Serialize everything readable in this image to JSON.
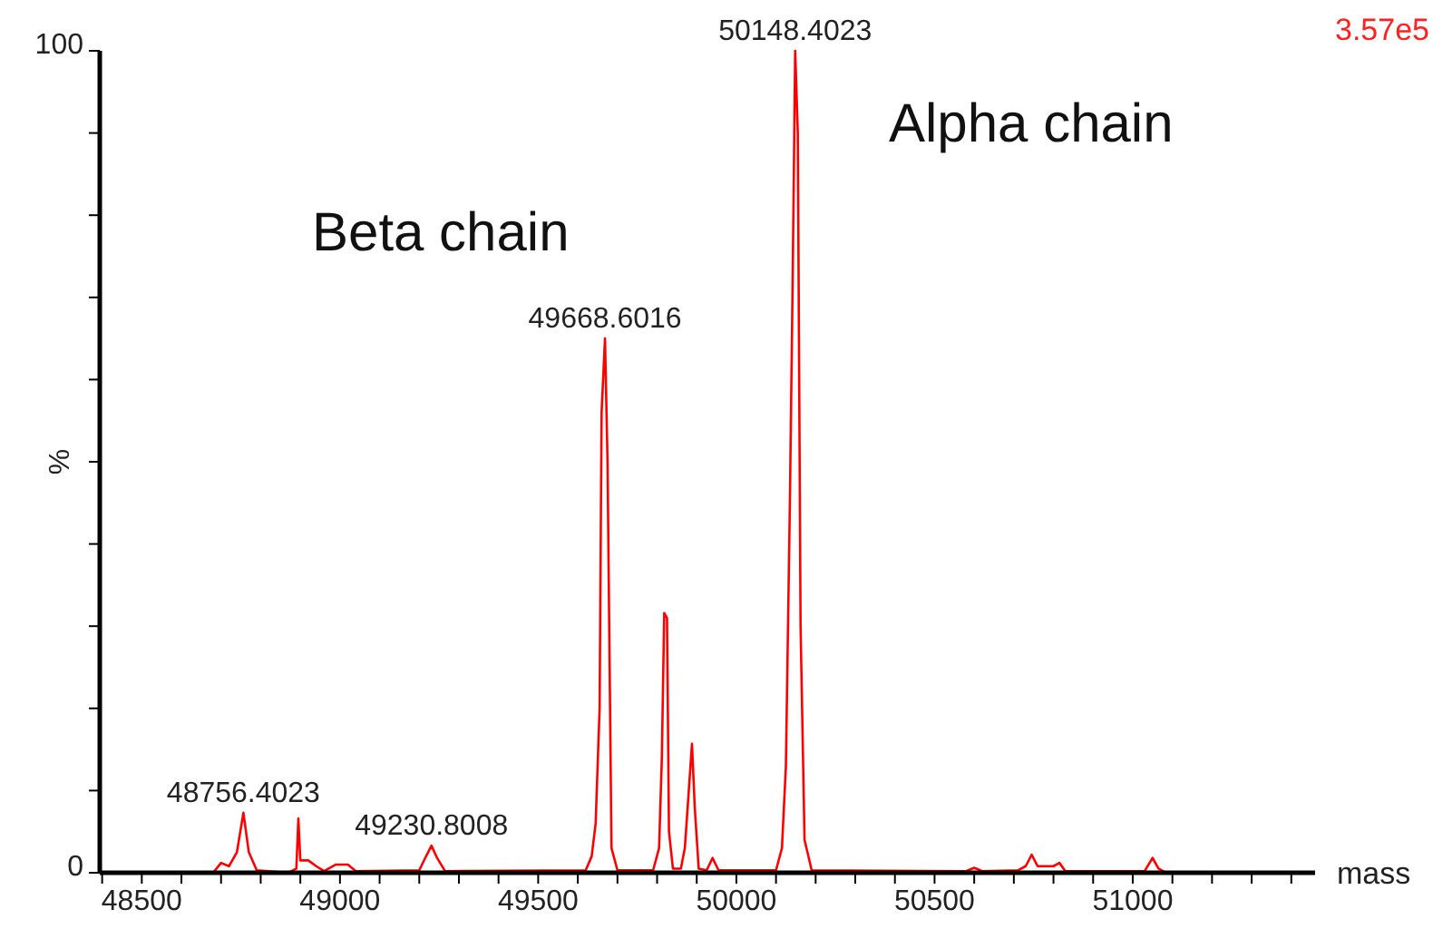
{
  "chart_data": {
    "type": "line",
    "xlabel": "mass",
    "ylabel": "%",
    "xlim": [
      48394,
      51460
    ],
    "ylim": [
      0,
      100
    ],
    "xticks": [
      {
        "value": 48400,
        "label": null
      },
      48500,
      {
        "value": 48600,
        "label": null
      },
      {
        "value": 48700,
        "label": null
      },
      {
        "value": 48800,
        "label": null
      },
      {
        "value": 48900,
        "label": null
      },
      49000,
      {
        "value": 49100,
        "label": null
      },
      {
        "value": 49200,
        "label": null
      },
      {
        "value": 49300,
        "label": null
      },
      {
        "value": 49400,
        "label": null
      },
      49500,
      {
        "value": 49600,
        "label": null
      },
      {
        "value": 49700,
        "label": null
      },
      {
        "value": 49800,
        "label": null
      },
      {
        "value": 49900,
        "label": null
      },
      50000,
      {
        "value": 50100,
        "label": null
      },
      {
        "value": 50200,
        "label": null
      },
      {
        "value": 50300,
        "label": null
      },
      {
        "value": 50400,
        "label": null
      },
      50500,
      {
        "value": 50600,
        "label": null
      },
      {
        "value": 50700,
        "label": null
      },
      {
        "value": 50800,
        "label": null
      },
      {
        "value": 50900,
        "label": null
      },
      51000,
      {
        "value": 51100,
        "label": null
      },
      {
        "value": 51200,
        "label": null
      },
      {
        "value": 51300,
        "label": null
      },
      {
        "value": 51400,
        "label": null
      }
    ],
    "yticks": [
      0,
      {
        "value": 10,
        "label": null
      },
      {
        "value": 20,
        "label": null
      },
      {
        "value": 30,
        "label": null
      },
      {
        "value": 40,
        "label": null
      },
      {
        "value": 50,
        "label": null
      },
      {
        "value": 60,
        "label": null
      },
      {
        "value": 70,
        "label": null
      },
      {
        "value": 80,
        "label": null
      },
      {
        "value": 90,
        "label": null
      },
      100
    ],
    "marker": "none",
    "line_style": "solid",
    "grid": false,
    "series": [
      {
        "color": "#ff0000",
        "x": [
          48394,
          48680,
          48700,
          48720,
          48740,
          48756.4023,
          48770,
          48790,
          48870,
          48890,
          48895,
          48900,
          48920,
          48940,
          48960,
          48990,
          49020,
          49040,
          49200,
          49215,
          49230.8008,
          49245,
          49265,
          49620,
          49635,
          49645,
          49655,
          49660,
          49668.6016,
          49675,
          49685,
          49700,
          49790,
          49805,
          49812,
          49818,
          49825,
          49830,
          49840,
          49860,
          49870,
          49880,
          49888,
          49895,
          49905,
          49925,
          49940,
          49955,
          50100,
          50115,
          50125,
          50135,
          50142,
          50148.4023,
          50155,
          50162,
          50172,
          50190,
          50580,
          50600,
          50620,
          50710,
          50730,
          50745,
          50760,
          50800,
          50815,
          50830,
          51030,
          51050,
          51065,
          51080,
          51460
        ],
        "values": [
          0,
          0,
          1.2,
          0.8,
          2.5,
          7.3,
          2.5,
          0.3,
          0,
          0.5,
          6.6,
          1.5,
          1.5,
          0.8,
          0.2,
          1,
          1,
          0.2,
          0.3,
          1.8,
          3.3,
          1.8,
          0.2,
          0.3,
          2,
          6,
          20,
          56,
          65,
          50,
          3,
          0.3,
          0.3,
          3,
          14,
          31.6,
          31,
          5,
          0.5,
          0.5,
          3,
          10,
          15.7,
          8,
          0.5,
          0.3,
          1.8,
          0.3,
          0.3,
          3,
          13,
          45,
          72,
          100,
          90,
          30,
          4,
          0.3,
          0.2,
          0.6,
          0.2,
          0.3,
          0.8,
          2.2,
          0.8,
          0.8,
          1.2,
          0.2,
          0.2,
          1.8,
          0.5,
          0.1,
          0
        ]
      }
    ],
    "annotations": [
      {
        "text": "48756.4023",
        "x": 48756.4023,
        "y": 7.3
      },
      {
        "text": "49230.8008",
        "x": 49230.8008,
        "y": 3.3
      },
      {
        "text": "49668.6016",
        "x": 49668.6016,
        "y": 65
      },
      {
        "text": "50148.4023",
        "x": 50148.4023,
        "y": 100
      },
      "Beta chain",
      "Alpha chain",
      "3.57e5"
    ]
  }
}
